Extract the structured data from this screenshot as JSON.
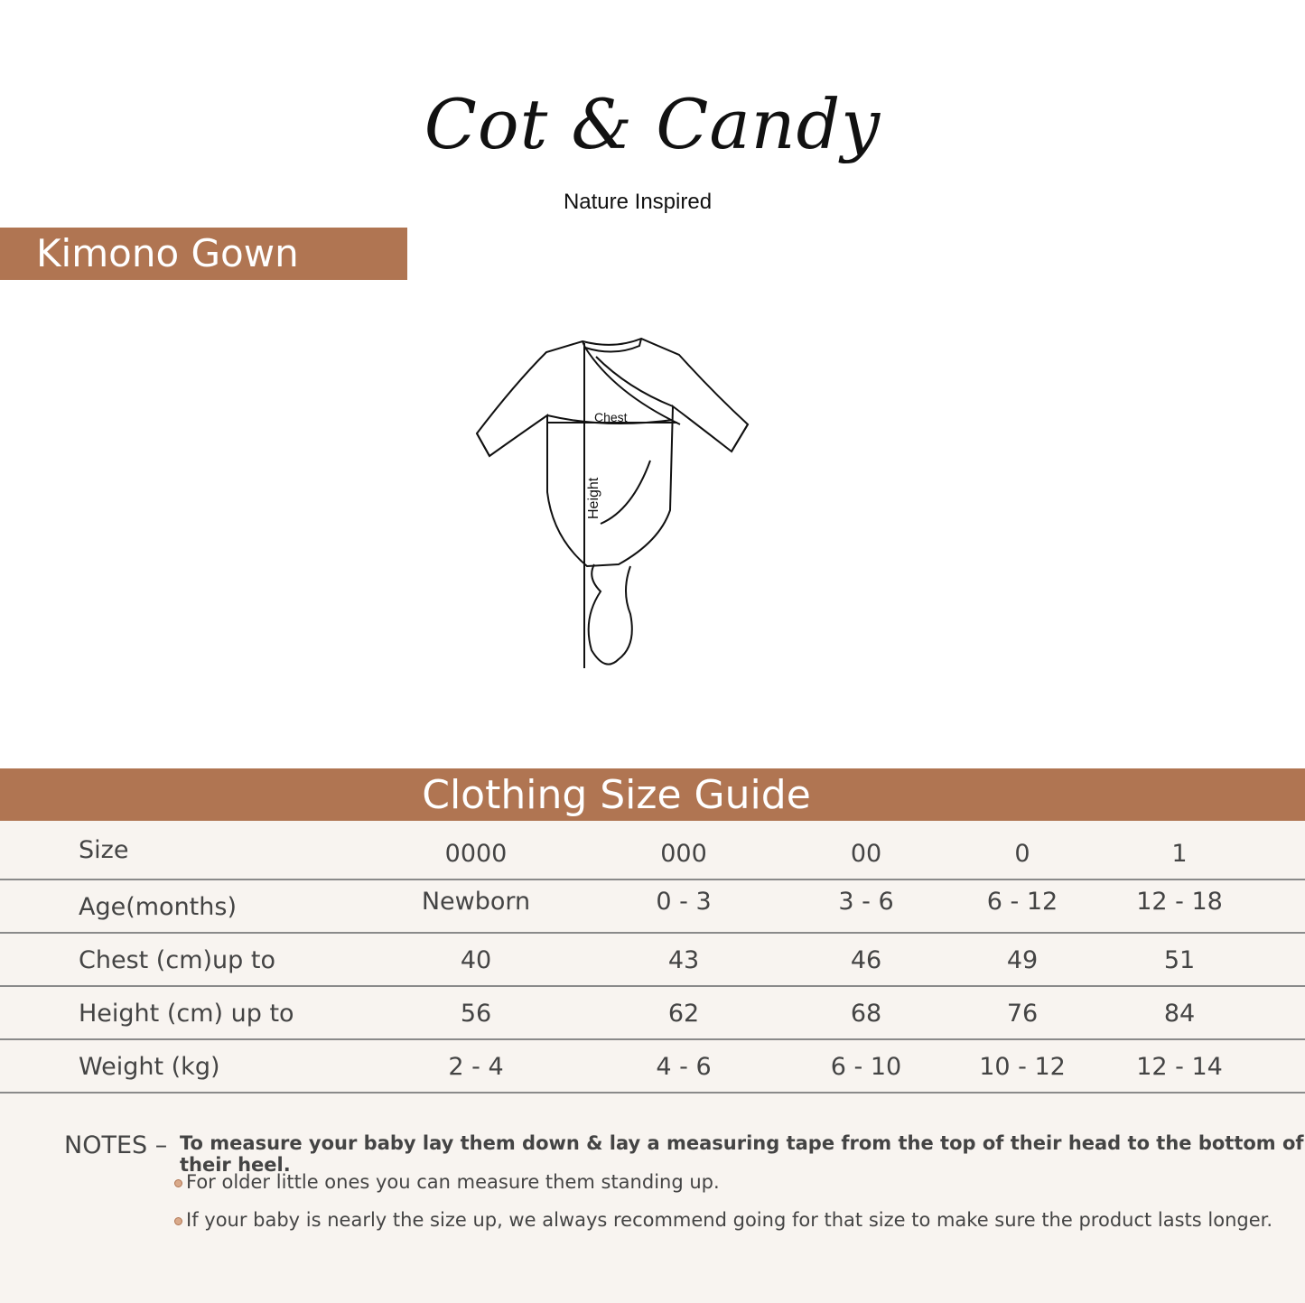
{
  "brand": {
    "name": "Cot & Candy",
    "tagline": "Nature Inspired"
  },
  "product_title": "Kimono Gown",
  "illustration": {
    "chest_label": "Chest",
    "height_label": "Height"
  },
  "guide": {
    "title": "Clothing Size Guide",
    "columns": [
      "0000",
      "000",
      "00",
      "0",
      "1"
    ],
    "rows": [
      {
        "label": "Size",
        "values": [
          "0000",
          "000",
          "00",
          "0",
          "1"
        ]
      },
      {
        "label": "Age(months)",
        "values": [
          "Newborn",
          "0 - 3",
          "3 - 6",
          "6 - 12",
          "12 - 18"
        ]
      },
      {
        "label": "Chest  (cm)up to",
        "values": [
          "40",
          "43",
          "46",
          "49",
          "51"
        ]
      },
      {
        "label": "Height (cm) up to",
        "values": [
          "56",
          "62",
          "68",
          "76",
          "84"
        ]
      },
      {
        "label": "Weight (kg)",
        "values": [
          "2 - 4",
          "4 - 6",
          "6 - 10",
          "10 - 12",
          "12 - 14"
        ]
      }
    ]
  },
  "notes": {
    "label": "NOTES –",
    "main": "To measure your baby lay them down & lay a measuring tape from the top of their head to the bottom of their heel.",
    "bullets": [
      "For older little ones you can measure them standing up.",
      "If your baby is nearly the size up, we always recommend going for that size to make sure the product lasts longer."
    ]
  },
  "colors": {
    "accent": "#b07552",
    "panel": "#f8f4f0"
  }
}
